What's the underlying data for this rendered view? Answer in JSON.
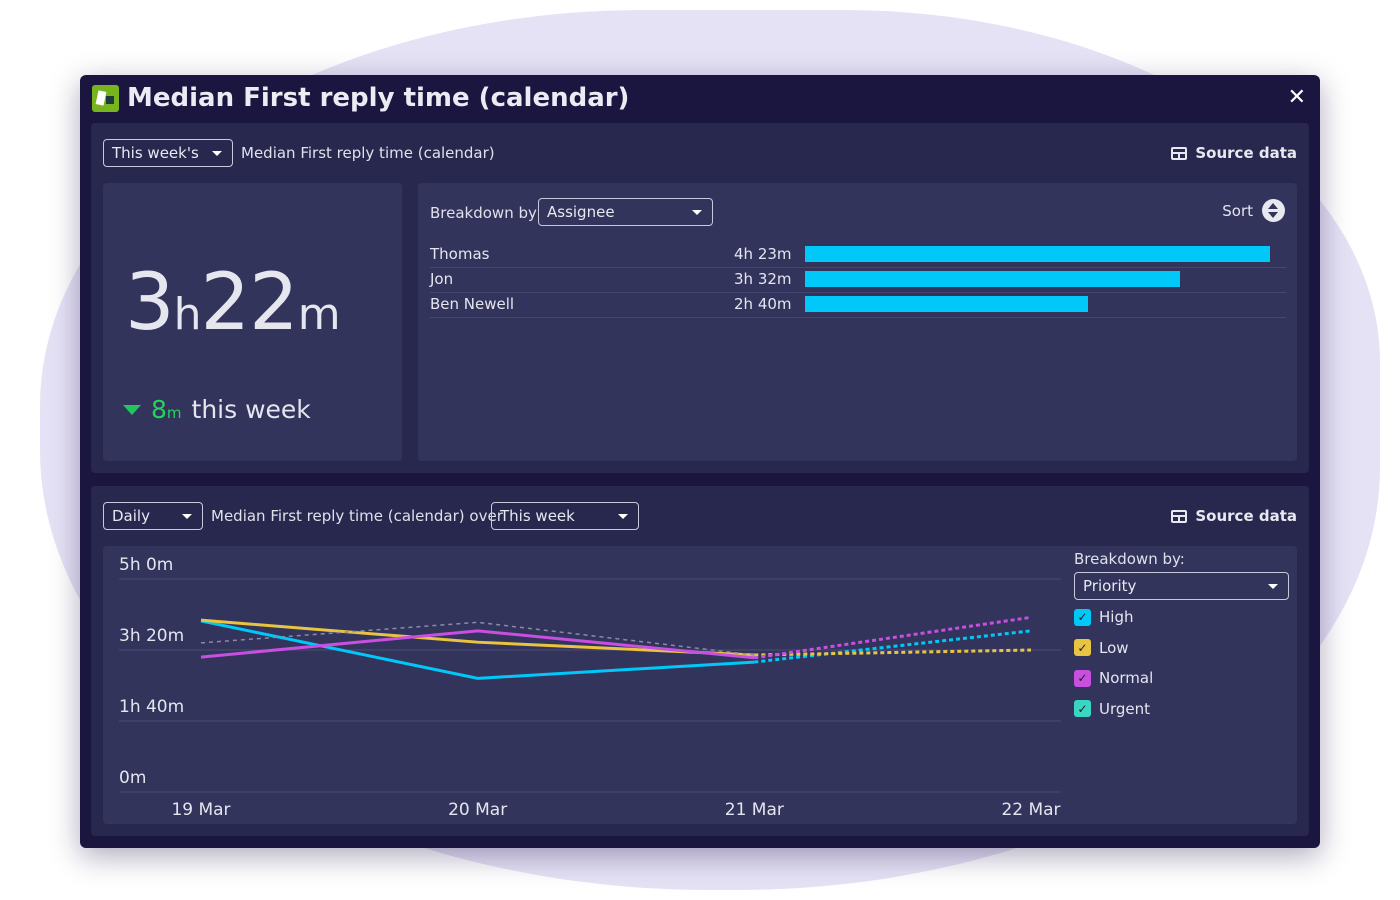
{
  "window": {
    "title": "Median First reply time (calendar)",
    "close_icon": "close-icon"
  },
  "summary": {
    "period_select": "This week's",
    "metric_label": "Median First reply time (calendar)",
    "source_data": "Source data",
    "value_hours": "3",
    "value_h_unit": "h",
    "value_minutes": "22",
    "value_m_unit": "m",
    "delta_value": "8",
    "delta_unit": "m",
    "delta_label": "this week",
    "delta_direction": "down",
    "breakdown_label": "Breakdown by",
    "breakdown_select": "Assignee",
    "sort_label": "Sort",
    "rows": [
      {
        "name": "Thomas",
        "value": "4h 23m",
        "minutes": 263
      },
      {
        "name": "Jon",
        "value": "3h 32m",
        "minutes": 212
      },
      {
        "name": "Ben Newell",
        "value": "2h 40m",
        "minutes": 160
      }
    ],
    "bar_color": "#00c8f8"
  },
  "trend": {
    "interval_select": "Daily",
    "metric_label": "Median First reply time (calendar) over",
    "period_select": "This week",
    "source_data": "Source data",
    "breakdown_label": "Breakdown by:",
    "breakdown_select": "Priority",
    "legend": [
      {
        "label": "High",
        "color": "#00c8f8",
        "checked": true
      },
      {
        "label": "Low",
        "color": "#e8c440",
        "checked": true
      },
      {
        "label": "Normal",
        "color": "#c84fe0",
        "checked": true
      },
      {
        "label": "Urgent",
        "color": "#3ad6c4",
        "checked": true
      }
    ]
  },
  "chart_data": {
    "type": "line",
    "x": [
      "19 Mar",
      "20 Mar",
      "21 Mar",
      "22 Mar"
    ],
    "y_ticks": [
      "5h 0m",
      "3h 20m",
      "1h 40m",
      "0m"
    ],
    "y_tick_minutes": [
      300,
      200,
      100,
      0
    ],
    "ylim": [
      0,
      300
    ],
    "y_unit": "minutes",
    "grid": true,
    "projected_from": "21 Mar",
    "series": [
      {
        "name": "High",
        "color": "#00c8f8",
        "values": [
          241,
          160,
          183,
          227
        ]
      },
      {
        "name": "Low",
        "color": "#e8c440",
        "values": [
          242,
          211,
          193,
          200
        ]
      },
      {
        "name": "Normal",
        "color": "#c84fe0",
        "values": [
          190,
          227,
          189,
          246
        ]
      },
      {
        "name": "Urgent",
        "color": "#3ad6c4",
        "values": [
          null,
          null,
          null,
          null
        ]
      },
      {
        "color": "#8a8aa8",
        "style": "dotted",
        "values": [
          210,
          239,
          193,
          null
        ]
      }
    ]
  }
}
